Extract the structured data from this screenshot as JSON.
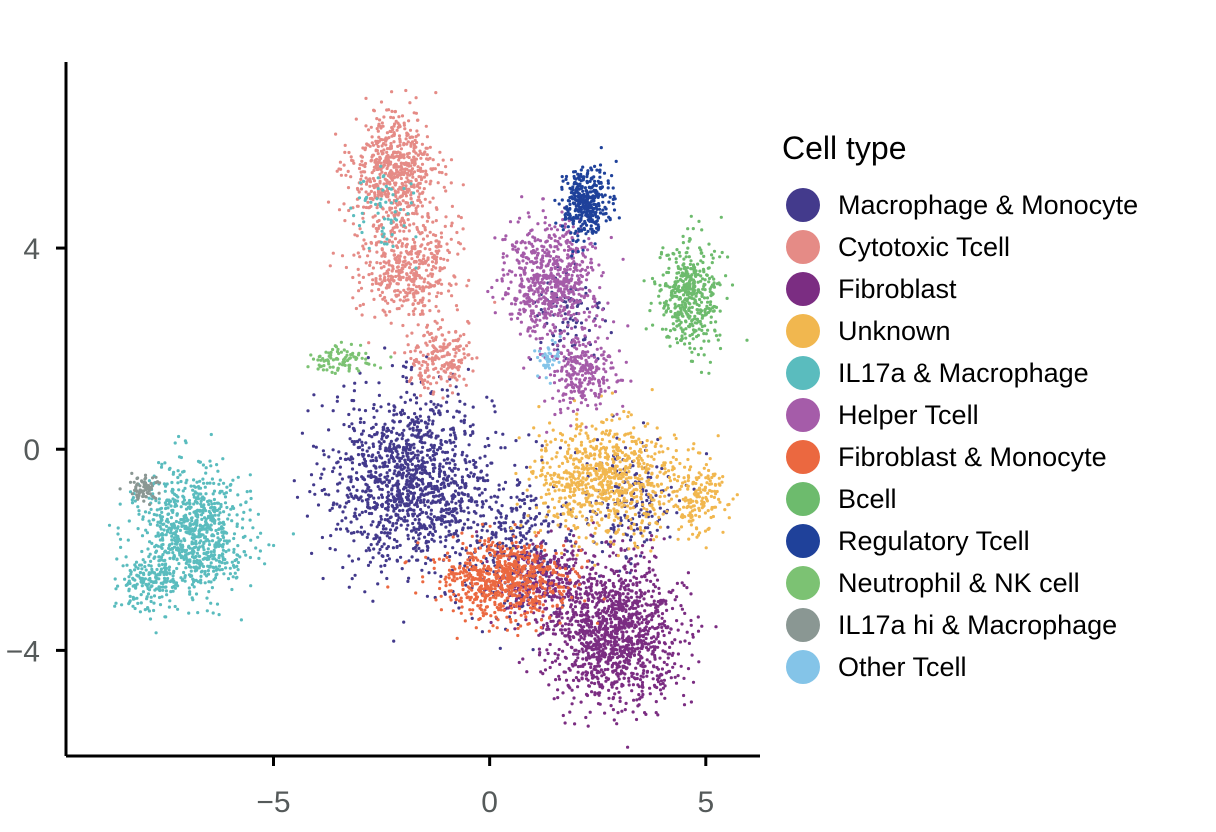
{
  "chart_data": {
    "type": "scatter",
    "title": "",
    "xlabel": "",
    "ylabel": "",
    "xlim": [
      -9.8,
      6.3
    ],
    "ylim": [
      -6.1,
      7.7
    ],
    "xticks": [
      -5,
      0,
      5
    ],
    "yticks": [
      -4,
      0,
      4
    ],
    "xtick_labels": [
      "−5",
      "0",
      "5"
    ],
    "ytick_labels": [
      "−4",
      "0",
      "4"
    ],
    "grid": false,
    "legend": {
      "title": "Cell type",
      "position": "right"
    },
    "series": [
      {
        "name": "Macrophage & Monocyte",
        "color": "#433a8c",
        "clusters": [
          {
            "cx": -1.8,
            "cy": -0.6,
            "sx": 1.3,
            "sy": 1.2,
            "n": 1300
          },
          {
            "cx": 0.6,
            "cy": -2.0,
            "sx": 1.0,
            "sy": 0.9,
            "n": 300
          },
          {
            "cx": 3.2,
            "cy": -1.0,
            "sx": 0.8,
            "sy": 0.9,
            "n": 180
          },
          {
            "cx": 1.8,
            "cy": 2.6,
            "sx": 0.6,
            "sy": 0.7,
            "n": 90
          }
        ]
      },
      {
        "name": "Cytotoxic Tcell",
        "color": "#e58b86",
        "clusters": [
          {
            "cx": -2.2,
            "cy": 5.5,
            "sx": 0.7,
            "sy": 0.8,
            "n": 650
          },
          {
            "cx": -1.9,
            "cy": 3.6,
            "sx": 0.75,
            "sy": 0.7,
            "n": 450
          },
          {
            "cx": -1.2,
            "cy": 1.8,
            "sx": 0.5,
            "sy": 0.45,
            "n": 200
          }
        ]
      },
      {
        "name": "Fibroblast",
        "color": "#7b2d82",
        "clusters": [
          {
            "cx": 2.9,
            "cy": -3.6,
            "sx": 1.05,
            "sy": 0.95,
            "n": 1300
          },
          {
            "cx": 1.2,
            "cy": -2.7,
            "sx": 0.7,
            "sy": 0.6,
            "n": 250
          }
        ]
      },
      {
        "name": "Unknown",
        "color": "#f1b74f",
        "clusters": [
          {
            "cx": 2.7,
            "cy": -0.6,
            "sx": 1.15,
            "sy": 0.8,
            "n": 800
          },
          {
            "cx": 4.8,
            "cy": -1.0,
            "sx": 0.45,
            "sy": 0.5,
            "n": 160
          }
        ]
      },
      {
        "name": "IL17a & Macrophage",
        "color": "#5abcbe",
        "clusters": [
          {
            "cx": -6.9,
            "cy": -1.7,
            "sx": 0.9,
            "sy": 0.85,
            "n": 850
          },
          {
            "cx": -7.9,
            "cy": -2.7,
            "sx": 0.45,
            "sy": 0.35,
            "n": 150
          },
          {
            "cx": -2.5,
            "cy": 4.8,
            "sx": 0.5,
            "sy": 0.6,
            "n": 60
          }
        ]
      },
      {
        "name": "Helper Tcell",
        "color": "#a55ca9",
        "clusters": [
          {
            "cx": 1.4,
            "cy": 3.4,
            "sx": 0.75,
            "sy": 0.75,
            "n": 650
          },
          {
            "cx": 2.1,
            "cy": 1.5,
            "sx": 0.6,
            "sy": 0.5,
            "n": 250
          }
        ]
      },
      {
        "name": "Fibroblast & Monocyte",
        "color": "#eb6840",
        "clusters": [
          {
            "cx": 0.3,
            "cy": -2.6,
            "sx": 1.05,
            "sy": 0.55,
            "n": 700
          }
        ]
      },
      {
        "name": "Bcell",
        "color": "#6dbb6d",
        "clusters": [
          {
            "cx": 4.6,
            "cy": 3.0,
            "sx": 0.5,
            "sy": 0.75,
            "n": 450
          }
        ]
      },
      {
        "name": "Regulatory Tcell",
        "color": "#1f419a",
        "clusters": [
          {
            "cx": 2.2,
            "cy": 4.9,
            "sx": 0.38,
            "sy": 0.5,
            "n": 380
          }
        ]
      },
      {
        "name": "Neutrophil & NK cell",
        "color": "#7cc273",
        "clusters": [
          {
            "cx": -3.5,
            "cy": 1.8,
            "sx": 0.45,
            "sy": 0.22,
            "n": 90
          }
        ]
      },
      {
        "name": "IL17a hi & Macrophage",
        "color": "#8a9793",
        "clusters": [
          {
            "cx": -8.0,
            "cy": -0.8,
            "sx": 0.25,
            "sy": 0.2,
            "n": 70
          }
        ]
      },
      {
        "name": "Other Tcell",
        "color": "#84c4e8",
        "clusters": [
          {
            "cx": 1.3,
            "cy": 1.8,
            "sx": 0.2,
            "sy": 0.25,
            "n": 40
          }
        ]
      }
    ]
  }
}
